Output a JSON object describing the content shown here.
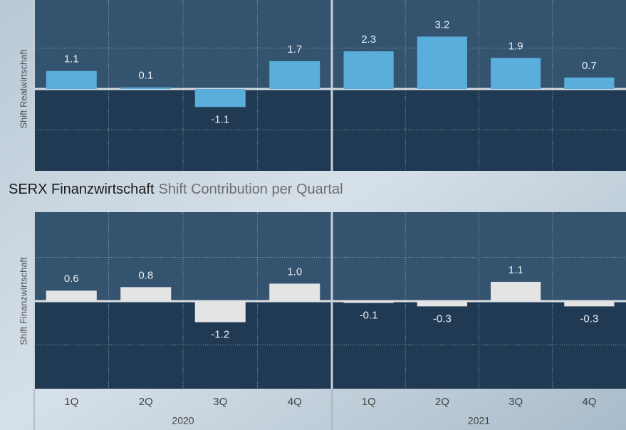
{
  "chart_data": [
    {
      "type": "bar",
      "y_label": "Shift Realwirtschaft",
      "values": [
        1.1,
        0.1,
        -1.1,
        1.7,
        2.3,
        3.2,
        1.9,
        0.7
      ],
      "value_labels": [
        "1.1",
        "0.1",
        "-1.1",
        "1.7",
        "2.3",
        "3.2",
        "1.9",
        "0.7"
      ],
      "color": "#5aaedc",
      "ylim": [
        -5,
        5
      ],
      "yticks": [
        -2.5,
        0,
        2.5
      ],
      "grid": true
    },
    {
      "type": "bar",
      "title": "SERX Finanzwirtschaft",
      "subtitle": "Shift Contribution per Quartal",
      "y_label": "Shift Finanzwirtschaft",
      "categories": [
        "1Q",
        "2Q",
        "3Q",
        "4Q",
        "1Q",
        "2Q",
        "3Q",
        "4Q"
      ],
      "groups": [
        "2020",
        "2021"
      ],
      "values": [
        0.6,
        0.8,
        -1.2,
        1.0,
        -0.1,
        -0.3,
        1.1,
        -0.3
      ],
      "value_labels": [
        "0.6",
        "0.8",
        "-1.2",
        "1.0",
        "-0.1",
        "-0.3",
        "1.1",
        "-0.3"
      ],
      "color": "#e4e4e4",
      "ylim": [
        -5,
        5
      ],
      "yticks": [
        -2.5,
        0,
        2.5
      ],
      "grid": true
    }
  ]
}
